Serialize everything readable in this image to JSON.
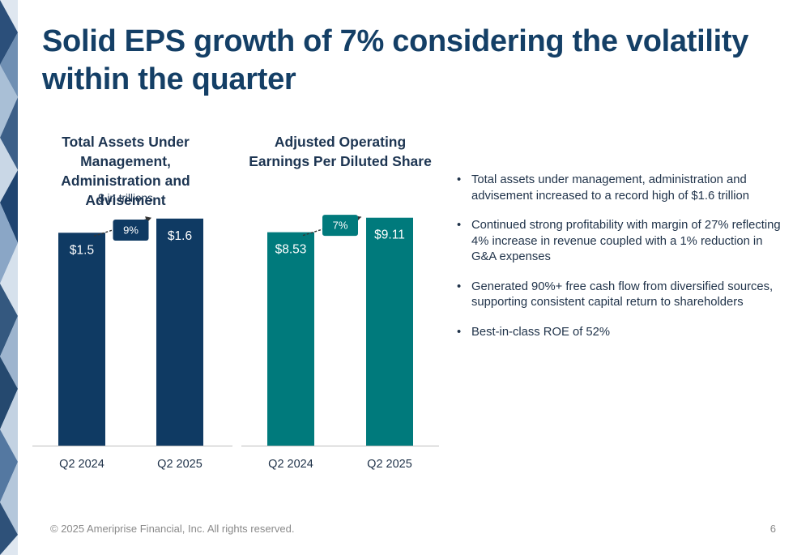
{
  "slide": {
    "title": "Solid EPS growth of 7% considering the volatility within the quarter",
    "bullets": [
      "Total assets under management, administration and advisement increased to a record high of $1.6 trillion",
      "Continued strong profitability with margin of 27% reflecting 4% increase in revenue coupled with a 1% reduction in G&A expenses",
      "Generated 90%+ free cash flow from diversified sources, supporting consistent capital return to shareholders",
      "Best-in-class ROE of 52%"
    ],
    "footer": "© 2025 Ameriprise Financial, Inc. All rights reserved.",
    "page_number": "6"
  },
  "colors": {
    "title": "#143f66",
    "chart1_bar": "#0f3a63",
    "chart2_bar": "#007a7c",
    "badge1": "#0f3a63",
    "badge2": "#007a7c",
    "decor_dark": "#2b4f7a",
    "decor_light": "#c9d7e6"
  },
  "chart_data": [
    {
      "type": "bar",
      "title": "Total Assets Under Management, Administration and Advisement",
      "subtitle": "$ in trillions",
      "categories": [
        "Q2 2024",
        "Q2 2025"
      ],
      "values": [
        1.5,
        1.6
      ],
      "data_labels": [
        "$1.5",
        "$1.6"
      ],
      "growth_label": "9%",
      "ylim": [
        0,
        1.77
      ],
      "grid": false,
      "legend": "none"
    },
    {
      "type": "bar",
      "title": "Adjusted Operating Earnings Per Diluted Share",
      "categories": [
        "Q2 2024",
        "Q2 2025"
      ],
      "values": [
        8.53,
        9.11
      ],
      "data_labels": [
        "$8.53",
        "$9.11"
      ],
      "growth_label": "7%",
      "ylim": [
        0,
        10.04
      ],
      "grid": false,
      "legend": "none"
    }
  ]
}
